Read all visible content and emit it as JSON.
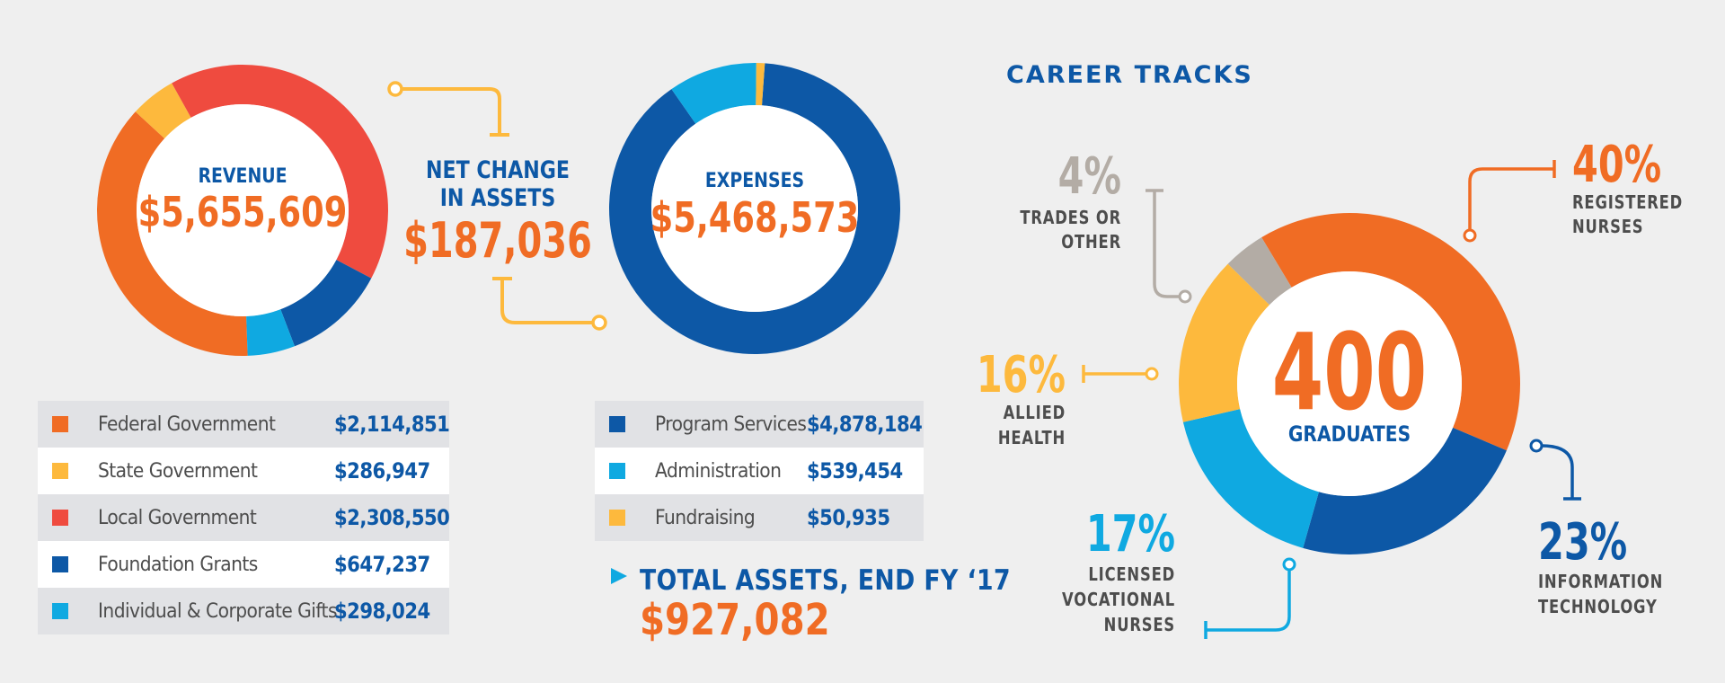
{
  "colors": {
    "orange": "#f06c24",
    "yellow": "#fdb93d",
    "red": "#ef4b3f",
    "navy": "#0d58a6",
    "cyan": "#0fa9e1",
    "gray": "#b3aca5",
    "text_gray": "#4d4d4d"
  },
  "revenue": {
    "title": "REVENUE",
    "total": "$5,655,609",
    "legend": [
      {
        "label": "Federal Government",
        "value": "$2,114,851",
        "color": "#f06c24"
      },
      {
        "label": "State Government",
        "value": "$286,947",
        "color": "#fdb93d"
      },
      {
        "label": "Local Government",
        "value": "$2,308,550",
        "color": "#ef4b3f"
      },
      {
        "label": "Foundation Grants",
        "value": "$647,237",
        "color": "#0d58a6"
      },
      {
        "label": "Individual & Corporate Gifts",
        "value": "$298,024",
        "color": "#0fa9e1"
      }
    ]
  },
  "net_change": {
    "line1": "NET CHANGE",
    "line2": "IN ASSETS",
    "value": "$187,036"
  },
  "expenses": {
    "title": "EXPENSES",
    "total": "$5,468,573",
    "legend": [
      {
        "label": "Program Services",
        "value": "$4,878,184",
        "color": "#0d58a6"
      },
      {
        "label": "Administration",
        "value": "$539,454",
        "color": "#0fa9e1"
      },
      {
        "label": "Fundraising",
        "value": "$50,935",
        "color": "#fdb93d"
      }
    ]
  },
  "total_assets": {
    "label": "TOTAL ASSETS, END FY ‘17",
    "value": "$927,082"
  },
  "career": {
    "heading": "CAREER TRACKS",
    "center_number": "400",
    "center_label": "GRADUATES",
    "tracks": [
      {
        "pct": "40%",
        "line1": "REGISTERED",
        "line2": "NURSES",
        "line3": "",
        "color": "#f06c24"
      },
      {
        "pct": "23%",
        "line1": "INFORMATION",
        "line2": "TECHNOLOGY",
        "line3": "",
        "color": "#0d58a6"
      },
      {
        "pct": "17%",
        "line1": "LICENSED",
        "line2": "VOCATIONAL",
        "line3": "NURSES",
        "color": "#0fa9e1"
      },
      {
        "pct": "16%",
        "line1": "ALLIED",
        "line2": "HEALTH",
        "line3": "",
        "color": "#fdb93d"
      },
      {
        "pct": "4%",
        "line1": "TRADES OR",
        "line2": "OTHER",
        "line3": "",
        "color": "#b3aca5"
      }
    ]
  },
  "chart_data": [
    {
      "type": "pie",
      "title": "REVENUE",
      "categories": [
        "Federal Government",
        "State Government",
        "Local Government",
        "Foundation Grants",
        "Individual & Corporate Gifts"
      ],
      "values": [
        2114851,
        286947,
        2308550,
        647237,
        298024
      ],
      "total": 5655609,
      "donut": true
    },
    {
      "type": "pie",
      "title": "EXPENSES",
      "categories": [
        "Program Services",
        "Administration",
        "Fundraising"
      ],
      "values": [
        4878184,
        539454,
        50935
      ],
      "total": 5468573,
      "donut": true
    },
    {
      "type": "pie",
      "title": "CAREER TRACKS",
      "categories": [
        "REGISTERED NURSES",
        "INFORMATION TECHNOLOGY",
        "LICENSED VOCATIONAL NURSES",
        "ALLIED HEALTH",
        "TRADES OR OTHER"
      ],
      "values": [
        40,
        23,
        17,
        16,
        4
      ],
      "total": 400,
      "donut": true
    }
  ]
}
